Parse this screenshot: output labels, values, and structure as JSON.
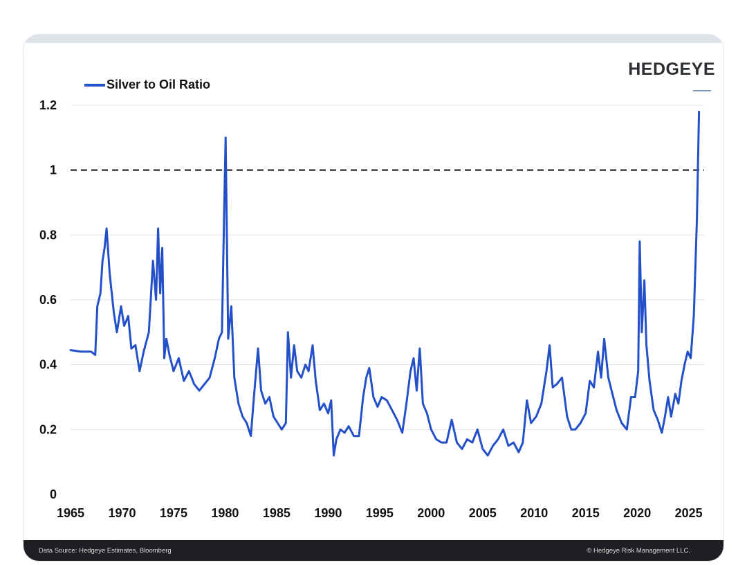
{
  "brand": {
    "name": "HEDGEYE"
  },
  "footer": {
    "source": "Data Source: Hedgeye Estimates, Bloomberg",
    "copyright": "© Hedgeye Risk Management LLC."
  },
  "colors": {
    "line": "#2350c8",
    "grid": "#e3e3e3",
    "reference": "#111111",
    "footer_bg": "#1d1f22"
  },
  "chart_data": {
    "type": "line",
    "title": "",
    "xlabel": "",
    "ylabel": "",
    "xlim": [
      1965,
      2026.5
    ],
    "ylim": [
      0,
      1.2
    ],
    "legend": "top-left",
    "grid": true,
    "x_ticks": [
      "1965",
      "1970",
      "1975",
      "1980",
      "1985",
      "1990",
      "1995",
      "2000",
      "2005",
      "2010",
      "2015",
      "2020",
      "2025"
    ],
    "y_ticks": [
      "0",
      "0.2",
      "0.4",
      "0.6",
      "0.8",
      "1",
      "1.2"
    ],
    "y_tick_values": [
      0,
      0.2,
      0.4,
      0.6,
      0.8,
      1,
      1.2
    ],
    "reference_line": {
      "y": 1.0,
      "style": "dashed"
    },
    "series": [
      {
        "name": "Silver to Oil Ratio",
        "x": [
          1965.0,
          1966.0,
          1967.0,
          1967.4,
          1967.6,
          1967.9,
          1968.1,
          1968.3,
          1968.5,
          1968.8,
          1969.2,
          1969.5,
          1969.9,
          1970.2,
          1970.6,
          1970.9,
          1971.3,
          1971.7,
          1972.1,
          1972.6,
          1973.0,
          1973.3,
          1973.5,
          1973.7,
          1973.9,
          1974.1,
          1974.3,
          1974.6,
          1975.0,
          1975.5,
          1976.0,
          1976.5,
          1977.0,
          1977.5,
          1978.0,
          1978.5,
          1979.0,
          1979.4,
          1979.7,
          1979.9,
          1980.05,
          1980.3,
          1980.6,
          1980.9,
          1981.3,
          1981.7,
          1982.1,
          1982.5,
          1982.8,
          1983.2,
          1983.5,
          1983.9,
          1984.3,
          1984.7,
          1985.1,
          1985.5,
          1985.9,
          1986.1,
          1986.4,
          1986.7,
          1987.0,
          1987.4,
          1987.8,
          1988.1,
          1988.5,
          1988.8,
          1989.2,
          1989.6,
          1990.0,
          1990.3,
          1990.55,
          1990.8,
          1991.2,
          1991.6,
          1992.0,
          1992.5,
          1993.0,
          1993.4,
          1993.7,
          1994.0,
          1994.4,
          1994.8,
          1995.2,
          1995.7,
          1996.2,
          1996.7,
          1997.2,
          1997.6,
          1998.0,
          1998.3,
          1998.6,
          1998.9,
          1999.2,
          1999.6,
          2000.0,
          2000.5,
          2001.0,
          2001.5,
          2002.0,
          2002.5,
          2003.0,
          2003.5,
          2004.0,
          2004.5,
          2005.0,
          2005.5,
          2006.0,
          2006.5,
          2007.0,
          2007.5,
          2008.0,
          2008.5,
          2008.9,
          2009.3,
          2009.7,
          2010.2,
          2010.7,
          2011.2,
          2011.5,
          2011.8,
          2012.2,
          2012.7,
          2013.2,
          2013.6,
          2014.0,
          2014.5,
          2015.0,
          2015.4,
          2015.8,
          2016.2,
          2016.5,
          2016.8,
          2017.2,
          2017.6,
          2018.0,
          2018.5,
          2019.0,
          2019.4,
          2019.8,
          2020.1,
          2020.25,
          2020.45,
          2020.7,
          2020.9,
          2021.2,
          2021.6,
          2022.0,
          2022.4,
          2022.7,
          2023.0,
          2023.3,
          2023.7,
          2024.0,
          2024.3,
          2024.6,
          2024.9,
          2025.2,
          2025.5,
          2025.8,
          2026.0
        ],
        "values": [
          0.445,
          0.44,
          0.44,
          0.43,
          0.58,
          0.62,
          0.72,
          0.76,
          0.82,
          0.68,
          0.56,
          0.5,
          0.58,
          0.52,
          0.55,
          0.45,
          0.46,
          0.38,
          0.44,
          0.5,
          0.72,
          0.6,
          0.82,
          0.62,
          0.76,
          0.42,
          0.48,
          0.43,
          0.38,
          0.42,
          0.35,
          0.38,
          0.34,
          0.32,
          0.34,
          0.36,
          0.42,
          0.48,
          0.5,
          0.85,
          1.1,
          0.48,
          0.58,
          0.36,
          0.28,
          0.24,
          0.22,
          0.18,
          0.3,
          0.45,
          0.32,
          0.28,
          0.3,
          0.24,
          0.22,
          0.2,
          0.22,
          0.5,
          0.36,
          0.46,
          0.38,
          0.36,
          0.4,
          0.38,
          0.46,
          0.35,
          0.26,
          0.28,
          0.25,
          0.29,
          0.12,
          0.17,
          0.2,
          0.19,
          0.21,
          0.18,
          0.18,
          0.3,
          0.36,
          0.39,
          0.3,
          0.27,
          0.3,
          0.29,
          0.26,
          0.23,
          0.19,
          0.28,
          0.38,
          0.42,
          0.32,
          0.45,
          0.28,
          0.25,
          0.2,
          0.17,
          0.16,
          0.16,
          0.23,
          0.16,
          0.14,
          0.17,
          0.16,
          0.2,
          0.14,
          0.12,
          0.15,
          0.17,
          0.2,
          0.15,
          0.16,
          0.13,
          0.16,
          0.29,
          0.22,
          0.24,
          0.28,
          0.38,
          0.46,
          0.33,
          0.34,
          0.36,
          0.24,
          0.2,
          0.2,
          0.22,
          0.25,
          0.35,
          0.33,
          0.44,
          0.36,
          0.48,
          0.36,
          0.31,
          0.26,
          0.22,
          0.2,
          0.3,
          0.3,
          0.38,
          0.78,
          0.5,
          0.66,
          0.46,
          0.35,
          0.26,
          0.23,
          0.19,
          0.24,
          0.3,
          0.24,
          0.31,
          0.28,
          0.35,
          0.4,
          0.44,
          0.42,
          0.55,
          0.85,
          1.18
        ]
      }
    ]
  }
}
